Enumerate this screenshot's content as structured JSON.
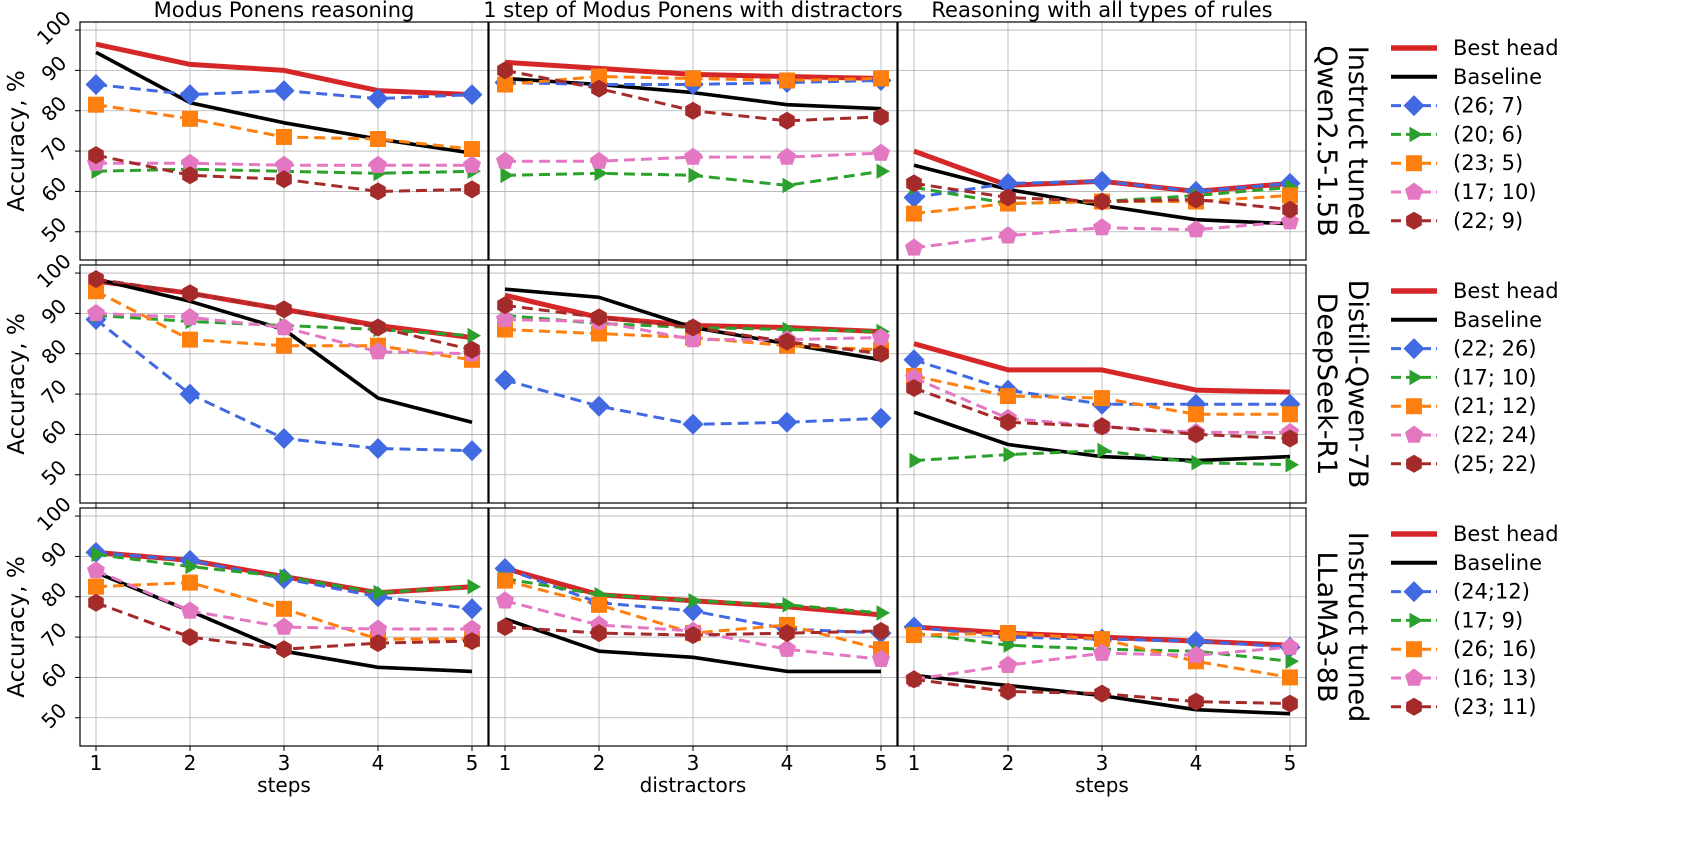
{
  "chart_data": {
    "type": "line",
    "column_titles": [
      "Modus Ponens reasoning",
      "1 step of Modus Ponens with distractors",
      "Reasoning with all types of rules"
    ],
    "x_labels": [
      "steps",
      "distractors",
      "steps"
    ],
    "x": [
      1,
      2,
      3,
      4,
      5
    ],
    "ylabel": "Accuracy, %",
    "ylim": [
      43,
      102
    ],
    "yticks": [
      50,
      60,
      70,
      80,
      90,
      100
    ],
    "colors": {
      "best": "#d62728",
      "baseline": "#000000",
      "blue": "#4169e1",
      "green": "#2ca02c",
      "orange": "#ff7f0e",
      "pink": "#e377c2",
      "brown": "#a52a2a"
    },
    "rows": [
      {
        "label_lines": [
          "Qwen2.5-1.5B",
          "Instruct tuned"
        ],
        "legend": [
          "Best head",
          "Baseline",
          "(26; 7)",
          "(20; 6)",
          "(23; 5)",
          "(17; 10)",
          "(22; 9)"
        ],
        "panels": [
          {
            "best": [
              96.5,
              91.5,
              90,
              85,
              84
            ],
            "baseline": [
              94.5,
              82,
              77,
              73,
              69.5
            ],
            "blue": [
              86.5,
              84,
              85,
              83,
              84
            ],
            "green": [
              65,
              65.5,
              65,
              64.5,
              65
            ],
            "orange": [
              81.5,
              78,
              73.5,
              73,
              70.5
            ],
            "pink": [
              67,
              67,
              66.5,
              66.5,
              66.5
            ],
            "brown": [
              69,
              64,
              63,
              60,
              60.5
            ]
          },
          {
            "best": [
              92,
              90.5,
              89,
              88.5,
              88
            ],
            "baseline": [
              88,
              86.5,
              84.5,
              81.5,
              80.5
            ],
            "blue": [
              87,
              86.5,
              86.5,
              87,
              87.5
            ],
            "green": [
              64,
              64.5,
              64,
              61.5,
              65
            ],
            "orange": [
              86.5,
              88.5,
              88,
              87.5,
              88
            ],
            "pink": [
              67.5,
              67.5,
              68.5,
              68.5,
              69.5
            ],
            "brown": [
              90,
              85.5,
              80,
              77.5,
              78.5
            ]
          },
          {
            "best": [
              70,
              61.5,
              62.5,
              60,
              62
            ],
            "baseline": [
              66.5,
              60.5,
              56.5,
              53,
              52
            ],
            "blue": [
              58.5,
              62,
              62.5,
              60,
              62
            ],
            "green": [
              61,
              57,
              57.5,
              59,
              61
            ],
            "orange": [
              54.5,
              57,
              57.5,
              57.5,
              59
            ],
            "pink": [
              46,
              49,
              51,
              50.5,
              52.5
            ],
            "brown": [
              62,
              58.5,
              57.5,
              58,
              55.5
            ]
          }
        ]
      },
      {
        "label_lines": [
          "DeepSeek-R1",
          "Distill-Qwen-7B"
        ],
        "legend": [
          "Best head",
          "Baseline",
          "(22; 26)",
          "(17; 10)",
          "(21; 12)",
          "(22; 24)",
          "(25; 22)"
        ],
        "panels": [
          {
            "best": [
              98,
              95,
              91,
              87,
              84
            ],
            "baseline": [
              98.5,
              93,
              86,
              69,
              63
            ],
            "blue": [
              88.5,
              70,
              59,
              56.5,
              56
            ],
            "green": [
              89.5,
              88,
              87,
              86,
              84.5
            ],
            "orange": [
              95.5,
              83.5,
              82,
              82,
              78.5
            ],
            "pink": [
              90,
              89,
              86.5,
              80.5,
              80
            ],
            "brown": [
              98.5,
              95,
              91,
              86.5,
              81
            ]
          },
          {
            "best": [
              94.5,
              89,
              87,
              86.5,
              85.5
            ],
            "baseline": [
              96,
              94,
              86.5,
              82.5,
              78.5
            ],
            "blue": [
              73.5,
              67,
              62.5,
              63,
              64
            ],
            "green": [
              89.5,
              87.5,
              86.5,
              86,
              85.5
            ],
            "orange": [
              86,
              85,
              84,
              82,
              81
            ],
            "pink": [
              88.5,
              88,
              83.5,
              83.5,
              84
            ],
            "brown": [
              92,
              89,
              86.5,
              83,
              80
            ]
          },
          {
            "best": [
              82.5,
              76,
              76,
              71,
              70.5
            ],
            "baseline": [
              65.5,
              57.5,
              54.5,
              53.5,
              54.5
            ],
            "blue": [
              78.5,
              71,
              67.5,
              67.5,
              67.5
            ],
            "green": [
              53.5,
              55,
              56,
              53,
              52.5
            ],
            "orange": [
              74.5,
              69.5,
              69,
              65,
              65
            ],
            "pink": [
              74,
              64,
              62,
              60.5,
              60.5
            ],
            "brown": [
              71.5,
              63,
              62,
              60,
              59
            ]
          }
        ]
      },
      {
        "label_lines": [
          "LLaMA3-8B",
          "Instruct tuned"
        ],
        "legend": [
          "Best head",
          "Baseline",
          "(24;12)",
          "(17; 9)",
          "(26; 16)",
          "(16; 13)",
          "(23; 11)"
        ],
        "panels": [
          {
            "best": [
              91,
              89,
              85,
              81,
              82.5
            ],
            "baseline": [
              86,
              76.5,
              66.5,
              62.5,
              61.5
            ],
            "blue": [
              91,
              89,
              84.5,
              80,
              77
            ],
            "green": [
              90.5,
              87.5,
              85,
              81,
              82.5
            ],
            "orange": [
              82.5,
              83.5,
              77,
              69.5,
              69.5
            ],
            "pink": [
              86.5,
              76.5,
              72.5,
              72,
              72
            ],
            "brown": [
              78.5,
              70,
              67,
              68.5,
              69
            ]
          },
          {
            "best": [
              87,
              80.5,
              79,
              77.5,
              75.5
            ],
            "baseline": [
              74.5,
              66.5,
              65,
              61.5,
              61.5
            ],
            "blue": [
              87,
              78.5,
              76.5,
              72,
              71
            ],
            "green": [
              84.5,
              80.5,
              79,
              78,
              76
            ],
            "orange": [
              84,
              78,
              71,
              73,
              67
            ],
            "pink": [
              79,
              73,
              71.5,
              67,
              64.5
            ],
            "brown": [
              72.5,
              71,
              70.5,
              71,
              71.5
            ]
          },
          {
            "best": [
              72.5,
              71,
              70,
              69,
              68
            ],
            "baseline": [
              60.5,
              58,
              55.5,
              52,
              51
            ],
            "blue": [
              72.5,
              70,
              69.5,
              69,
              67.5
            ],
            "green": [
              71,
              68,
              67,
              66.5,
              64
            ],
            "orange": [
              70.5,
              71,
              69.5,
              64,
              60
            ],
            "pink": [
              59.5,
              63,
              66,
              65.5,
              67.5
            ],
            "brown": [
              59.5,
              56.5,
              56,
              54,
              53.5
            ]
          }
        ]
      }
    ]
  }
}
